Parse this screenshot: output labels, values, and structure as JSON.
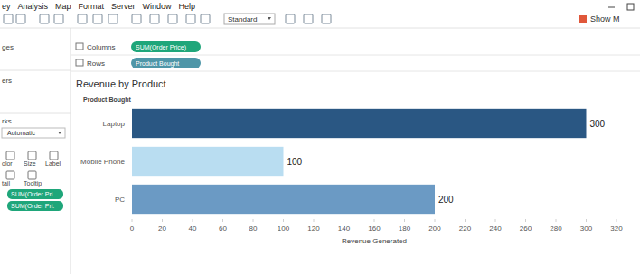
{
  "menu": [
    "ey",
    "Analysis",
    "Map",
    "Format",
    "Server",
    "Window",
    "Help"
  ],
  "toolbar": {
    "fit": "Standard",
    "show_me": "Show M"
  },
  "side_panel": {
    "pages": "ges",
    "filters": "ers",
    "marks": "rks",
    "mark_type": "Automatic",
    "buttons": [
      "olor",
      "Size",
      "Label",
      "tail",
      "Tooltip"
    ],
    "pills": [
      "SUM(Order Pri.",
      "SUM(Order Pri."
    ]
  },
  "shelves": {
    "columns": {
      "label": "Columns",
      "pill": "SUM(Order Price)"
    },
    "rows": {
      "label": "Rows",
      "pill": "Product Bought"
    }
  },
  "chart_data": {
    "type": "bar",
    "title": "Revenue by Product",
    "y_label": "Product Bought",
    "x_label": "Revenue Generated",
    "categories": [
      "Laptop",
      "Mobile Phone",
      "PC"
    ],
    "values": [
      300,
      100,
      200
    ],
    "colors": [
      "#2a5783",
      "#b9ddf1",
      "#6b9ac4"
    ],
    "orientation": "horizontal",
    "data_labels": true,
    "grid": false,
    "xlim": [
      0,
      320
    ],
    "xticks": [
      0,
      20,
      40,
      60,
      80,
      100,
      120,
      140,
      160,
      180,
      200,
      220,
      240,
      260,
      280,
      300,
      320
    ]
  }
}
